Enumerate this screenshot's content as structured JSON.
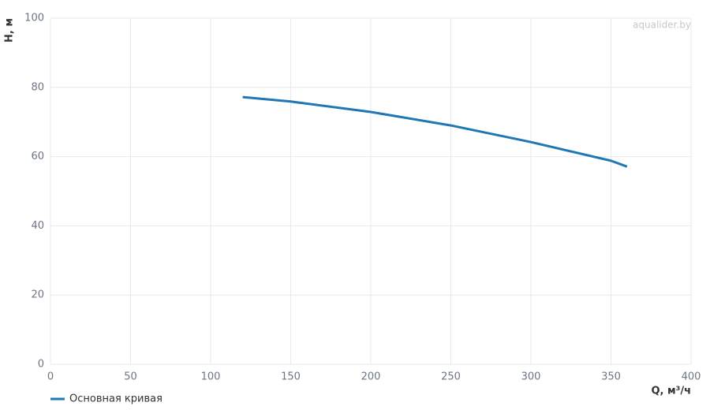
{
  "chart_data": {
    "type": "line",
    "xlabel": "Q, м³/ч",
    "ylabel": "H, м",
    "watermark": "aqualider.by",
    "x": [
      120,
      150,
      200,
      250,
      300,
      350,
      360
    ],
    "series": [
      {
        "name": "Основная кривая",
        "color": "#1f77b4",
        "values": [
          77.2,
          75.9,
          72.9,
          69.0,
          64.2,
          58.8,
          57.1
        ]
      }
    ],
    "xlim": [
      0,
      400
    ],
    "xticks": [
      0,
      50,
      100,
      150,
      200,
      250,
      300,
      350,
      400
    ],
    "ylim": [
      0,
      100
    ],
    "yticks": [
      0,
      20,
      40,
      60,
      80,
      100
    ],
    "grid": true,
    "legend": "bottom-left"
  }
}
